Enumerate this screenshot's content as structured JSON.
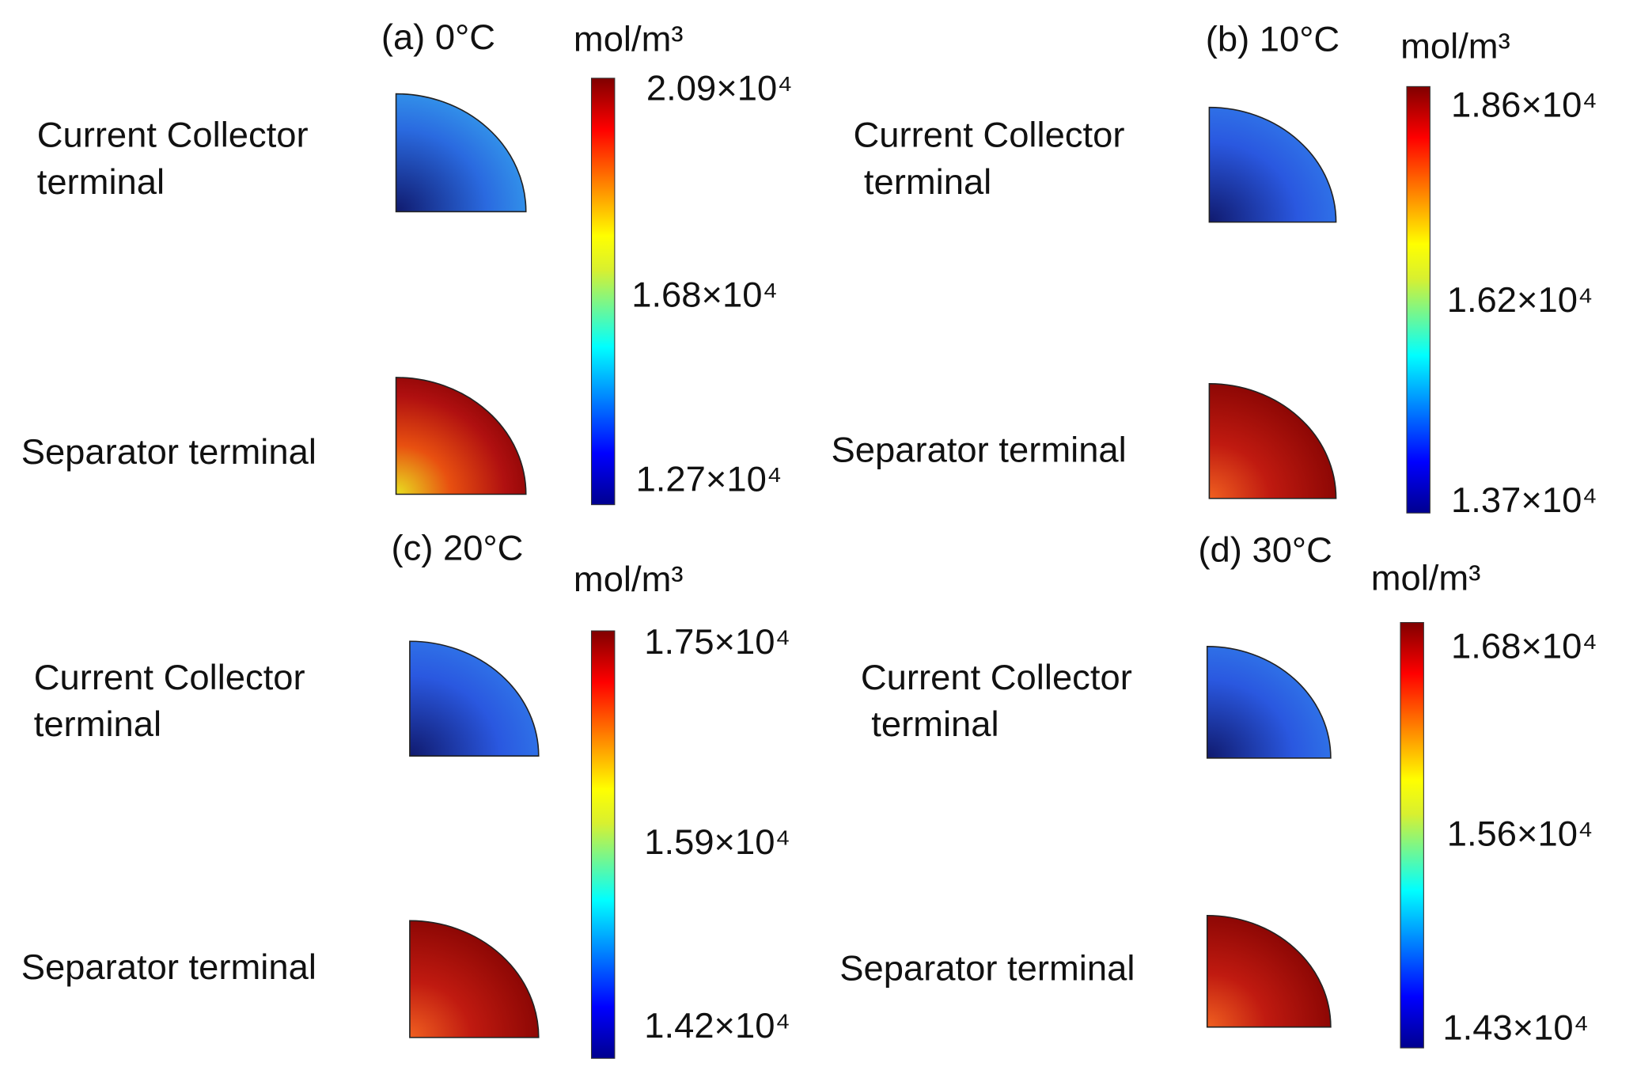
{
  "panels": [
    {
      "title": "(a) 0°C",
      "unit": "mol/m³",
      "collector_label": [
        "Current Collector",
        "terminal"
      ],
      "separator_label": "Separator terminal",
      "colorbar_ticks": [
        "2.09×10⁴",
        "1.68×10⁴",
        "1.27×10⁴"
      ]
    },
    {
      "title": "(b) 10°C",
      "unit": "mol/m³",
      "collector_label": [
        "Current Collector",
        "terminal"
      ],
      "separator_label": "Separator terminal",
      "colorbar_ticks": [
        "1.86×10⁴",
        "1.62×10⁴",
        "1.37×10⁴"
      ]
    },
    {
      "title": "(c) 20°C",
      "unit": "mol/m³",
      "collector_label": [
        "Current Collector",
        "terminal"
      ],
      "separator_label": "Separator terminal",
      "colorbar_ticks": [
        "1.75×10⁴",
        "1.59×10⁴",
        "1.42×10⁴"
      ]
    },
    {
      "title": "(d) 30°C",
      "unit": "mol/m³",
      "collector_label": [
        "Current Collector",
        "terminal"
      ],
      "separator_label": "Separator terminal",
      "colorbar_ticks": [
        "1.68×10⁴",
        "1.56×10⁴",
        "1.43×10⁴"
      ]
    }
  ]
}
